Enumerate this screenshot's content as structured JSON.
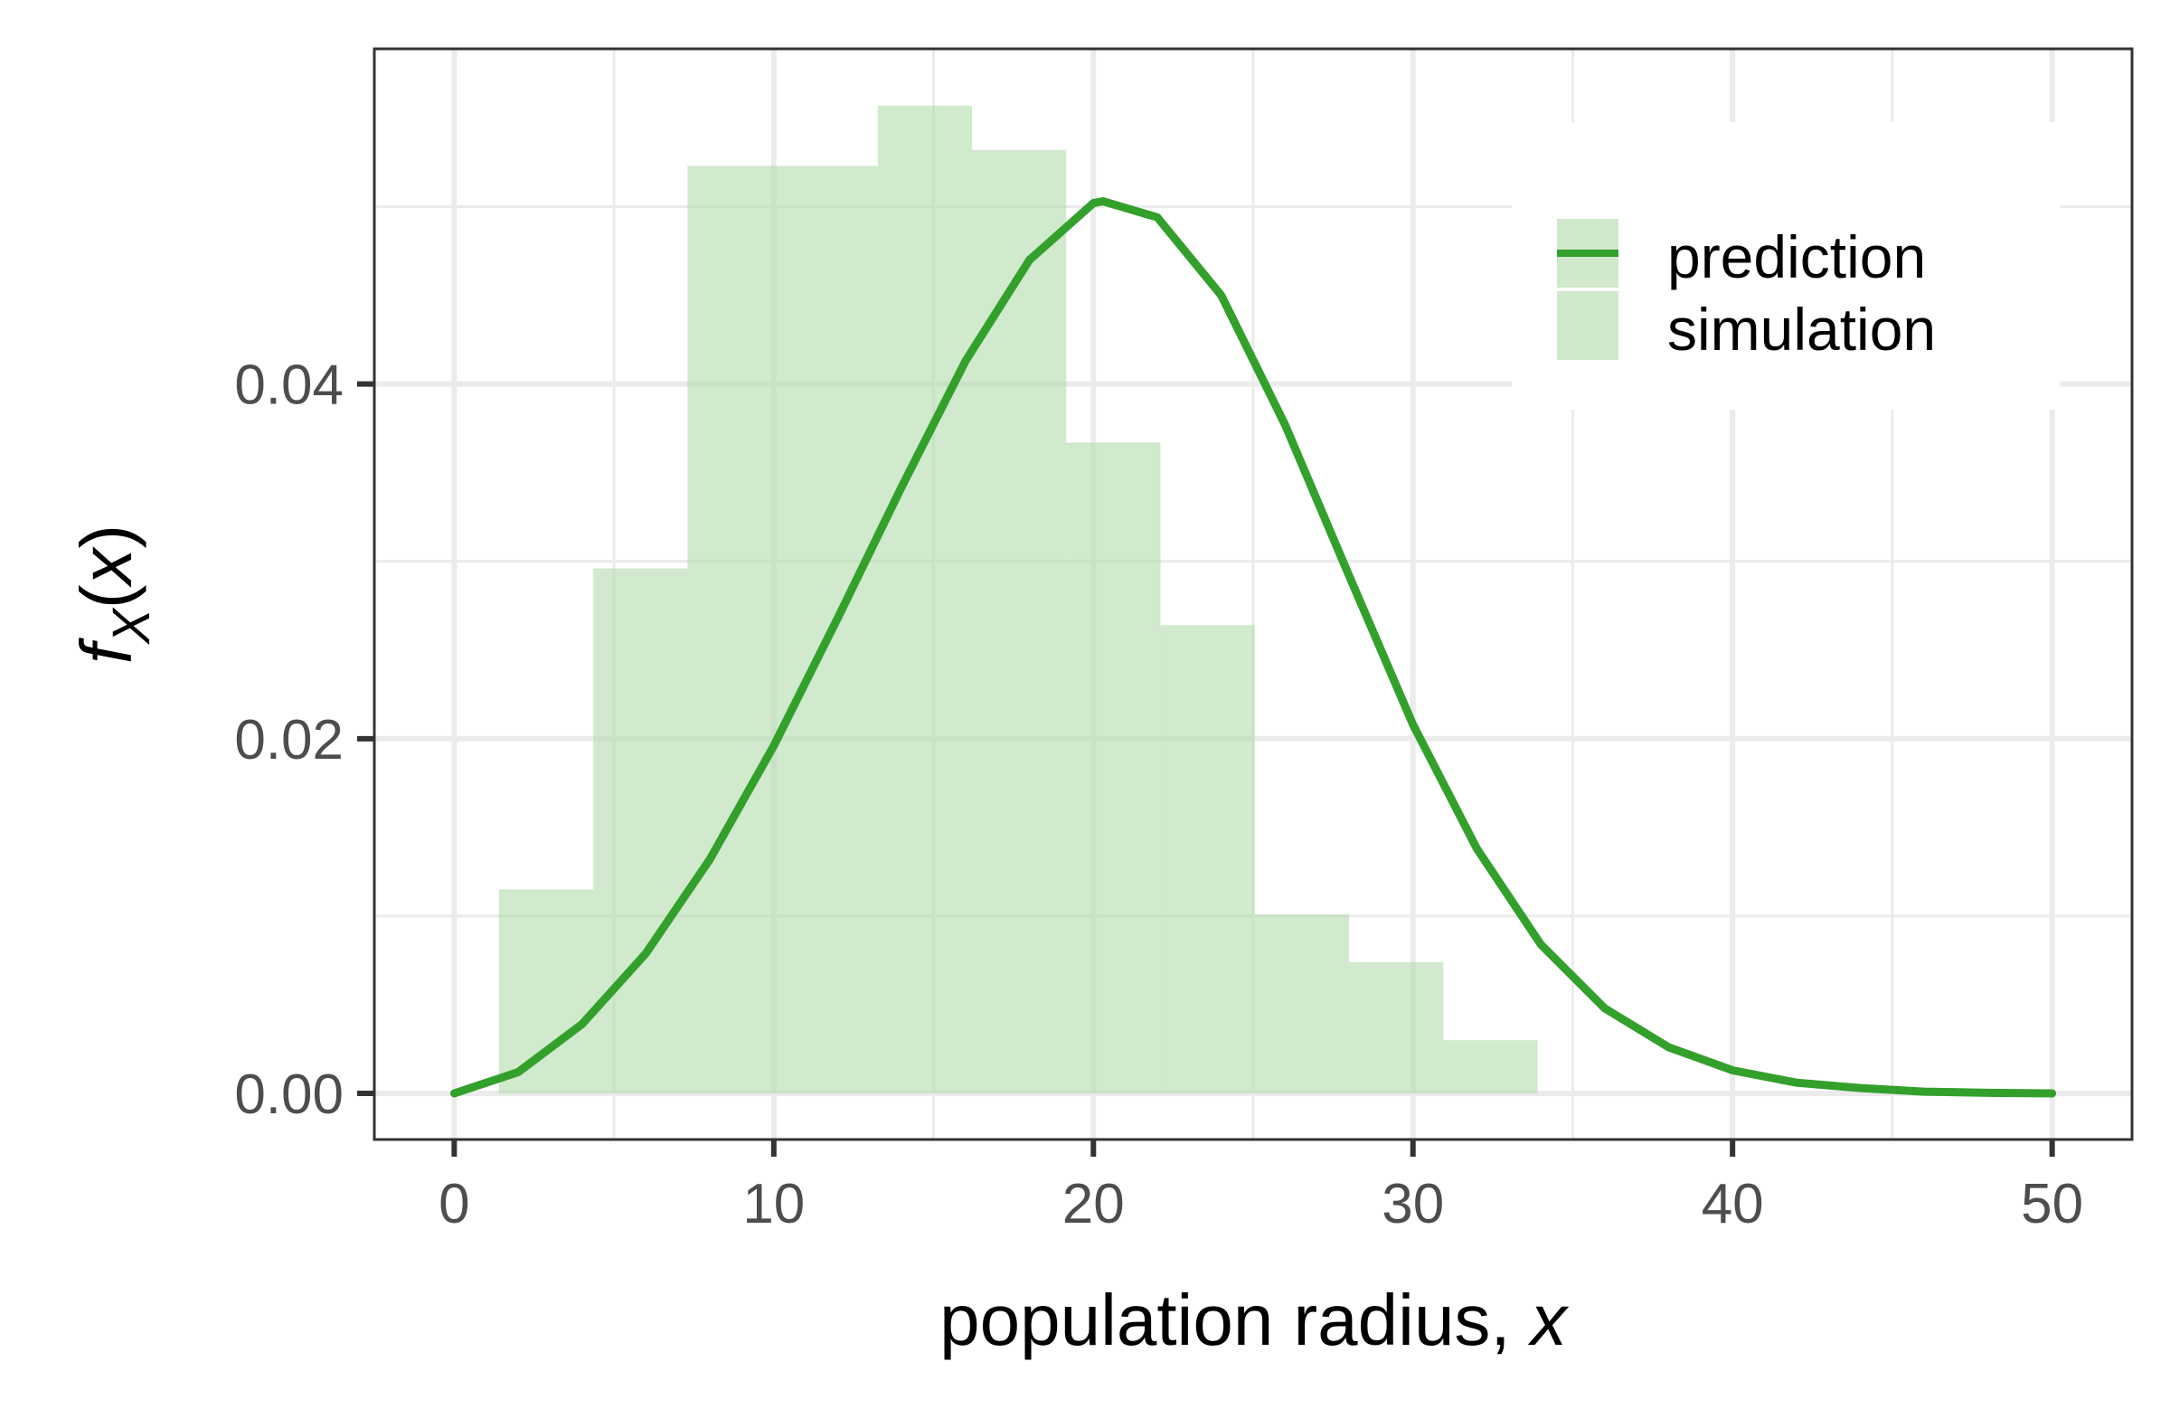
{
  "chart_data": {
    "type": "histogram-with-density-line",
    "xlabel_text": "population radius, ",
    "xlabel_var": "x",
    "ylabel": {
      "func": "f",
      "subscript": "X",
      "arg_open": "(",
      "arg": "x",
      "arg_close": ")"
    },
    "xlim": [
      -2.5,
      52.5
    ],
    "ylim": [
      -0.0026,
      0.0589
    ],
    "x_ticks": [
      0,
      10,
      20,
      30,
      40,
      50
    ],
    "x_tick_labels": [
      "0",
      "10",
      "20",
      "30",
      "40",
      "50"
    ],
    "y_ticks": [
      0.0,
      0.02,
      0.04
    ],
    "y_tick_labels": [
      "0.00",
      "0.02",
      "0.04"
    ],
    "x_minor_gridlines": [
      5,
      15,
      25,
      35,
      45
    ],
    "y_minor_gridlines": [
      0.01,
      0.03,
      0.05
    ],
    "grid": true,
    "colors": {
      "line": "#33a02c",
      "fill": "#b2dbab",
      "grid": "#ebebeb",
      "panel_border": "#333333"
    },
    "simulation": {
      "name": "simulation",
      "bin_edges": [
        1.4,
        4.35,
        7.3,
        13.25,
        16.2,
        19.15,
        22.1,
        25.05,
        28.0,
        30.95,
        33.9
      ],
      "densities": [
        0.0115,
        0.0296,
        0.0523,
        0.0557,
        0.0532,
        0.0367,
        0.0264,
        0.0101,
        0.0074,
        0.003
      ]
    },
    "prediction": {
      "name": "prediction",
      "x": [
        0,
        2,
        4,
        6,
        8,
        10,
        12,
        14,
        16,
        18,
        20,
        20.3,
        22,
        24,
        26,
        28,
        30,
        32,
        34,
        36,
        38,
        40,
        42,
        44,
        46,
        48,
        50
      ],
      "y": [
        0.0,
        0.0012,
        0.0039,
        0.0079,
        0.0132,
        0.0196,
        0.0268,
        0.0342,
        0.0413,
        0.047,
        0.0502,
        0.0503,
        0.0494,
        0.045,
        0.0377,
        0.0292,
        0.0208,
        0.0138,
        0.0084,
        0.0048,
        0.0026,
        0.0013,
        0.0006,
        0.0003,
        0.0001,
        3e-05,
        0.0
      ]
    },
    "legend": {
      "position": "top-right",
      "entries": [
        "prediction",
        "simulation"
      ]
    }
  }
}
